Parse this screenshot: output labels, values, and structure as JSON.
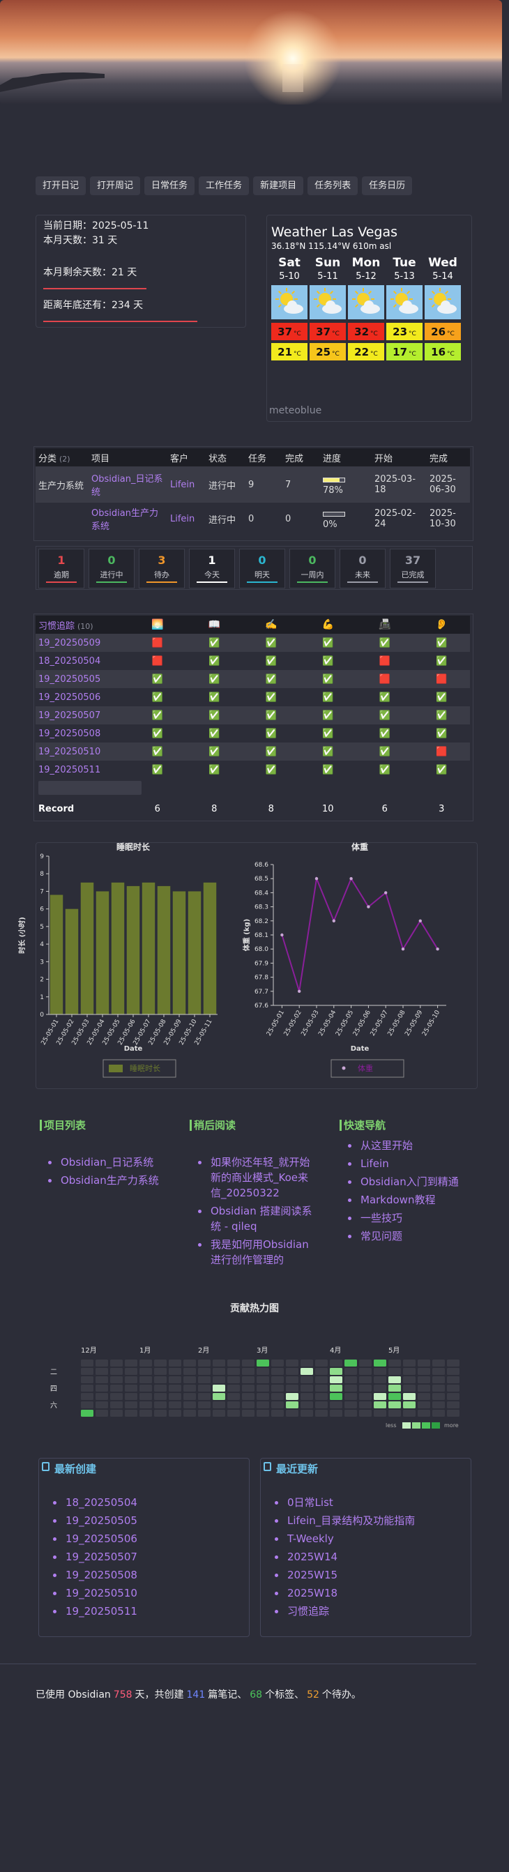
{
  "buttons": [
    "打开日记",
    "打开周记",
    "日常任务",
    "工作任务",
    "新建项目",
    "任务列表",
    "任务日历"
  ],
  "info": {
    "current_date": "当前日期：2025-05-11",
    "month_days": "本月天数：31 天",
    "month_remaining": "本月剩余天数：21 天",
    "year_remaining": "距离年底还有：234 天"
  },
  "weather": {
    "title": "Weather Las Vegas",
    "location": "36.18°N 115.14°W 610m asl",
    "unit": "°C",
    "source": "meteoblue",
    "days": [
      {
        "day": "Sat",
        "date": "5-10",
        "high": 37,
        "low": 21
      },
      {
        "day": "Sun",
        "date": "5-11",
        "high": 37,
        "low": 25
      },
      {
        "day": "Mon",
        "date": "5-12",
        "high": 32,
        "low": 22
      },
      {
        "day": "Tue",
        "date": "5-13",
        "high": 23,
        "low": 17
      },
      {
        "day": "Wed",
        "date": "5-14",
        "high": 26,
        "low": 16
      }
    ]
  },
  "projects": {
    "headers": [
      "分类",
      "项目",
      "客户",
      "状态",
      "任务",
      "完成",
      "进度",
      "开始",
      "完成"
    ],
    "count": "(2)",
    "rows": [
      {
        "category": "生产力系统",
        "project": "Obsidian_日记系统",
        "client": "Lifein",
        "status": "进行中",
        "tasks": 9,
        "done": 7,
        "progress": "78%",
        "start": "2025-03-18",
        "end": "2025-06-30"
      },
      {
        "category": null,
        "project": "Obsidian生产力系统",
        "client": "Lifein",
        "status": "进行中",
        "tasks": 0,
        "done": 0,
        "progress": "0%",
        "start": "2025-02-24",
        "end": "2025-10-30"
      }
    ]
  },
  "task_counts": [
    {
      "count": 1,
      "label": "逾期",
      "color": "#e5484d"
    },
    {
      "count": 0,
      "label": "进行中",
      "color": "#4cb860"
    },
    {
      "count": 3,
      "label": "待办",
      "color": "#f0962a"
    },
    {
      "count": 1,
      "label": "今天",
      "color": "#ffffff"
    },
    {
      "count": 0,
      "label": "明天",
      "color": "#2bb6d0"
    },
    {
      "count": 0,
      "label": "一周内",
      "color": "#4cb860"
    },
    {
      "count": 0,
      "label": "未来",
      "color": "#9a9ca8"
    },
    {
      "count": 37,
      "label": "已完成",
      "color": "#9a9ca8"
    }
  ],
  "habits": {
    "title": "习惯追踪",
    "count": "(10)",
    "icons": [
      "🌅",
      "📖",
      "✍️",
      "💪",
      "📠",
      "👂"
    ],
    "rows": [
      {
        "name": "19_20250509",
        "marks": [
          "🟥",
          "✅",
          "✅",
          "✅",
          "✅",
          "✅"
        ]
      },
      {
        "name": "18_20250504",
        "marks": [
          "🟥",
          "✅",
          "✅",
          "✅",
          "🟥",
          "✅"
        ]
      },
      {
        "name": "19_20250505",
        "marks": [
          "✅",
          "✅",
          "✅",
          "✅",
          "🟥",
          "🟥"
        ]
      },
      {
        "name": "19_20250506",
        "marks": [
          "✅",
          "✅",
          "✅",
          "✅",
          "✅",
          "✅"
        ]
      },
      {
        "name": "19_20250507",
        "marks": [
          "✅",
          "✅",
          "✅",
          "✅",
          "✅",
          "✅"
        ]
      },
      {
        "name": "19_20250508",
        "marks": [
          "✅",
          "✅",
          "✅",
          "✅",
          "✅",
          "✅"
        ]
      },
      {
        "name": "19_20250510",
        "marks": [
          "✅",
          "✅",
          "✅",
          "✅",
          "✅",
          "🟥"
        ]
      },
      {
        "name": "19_20250511",
        "marks": [
          "✅",
          "✅",
          "✅",
          "✅",
          "✅",
          "✅"
        ]
      }
    ],
    "record_label": "Record",
    "record": [
      6,
      8,
      8,
      10,
      6,
      3
    ]
  },
  "chart_data": [
    {
      "type": "bar",
      "title": "睡眠时长",
      "x_label": "Date",
      "y_label": "时长 (小时)",
      "categories": [
        "25-05-01",
        "25-05-02",
        "25-05-03",
        "25-05-04",
        "25-05-05",
        "25-05-06",
        "25-05-07",
        "25-05-08",
        "25-05-09",
        "25-05-10",
        "25-05-11"
      ],
      "series": [
        {
          "name": "睡眠时长",
          "color": "#6b7a2e",
          "values": [
            6.8,
            6.0,
            7.5,
            7.0,
            7.5,
            7.3,
            7.5,
            7.3,
            7.0,
            7.0,
            7.5
          ]
        }
      ],
      "ylim": [
        0,
        9
      ],
      "yticks": [
        0,
        1,
        2,
        3,
        4,
        5,
        6,
        7,
        8,
        9
      ],
      "grid": false
    },
    {
      "type": "line",
      "title": "体重",
      "x_label": "Date",
      "y_label": "体重 (kg)",
      "categories": [
        "25-05-01",
        "25-05-02",
        "25-05-03",
        "25-05-04",
        "25-05-05",
        "25-05-06",
        "25-05-07",
        "25-05-08",
        "25-05-09",
        "25-05-10"
      ],
      "series": [
        {
          "name": "体重",
          "color": "#8a1f9a",
          "values": [
            68.1,
            67.7,
            68.5,
            68.2,
            68.5,
            68.3,
            68.4,
            68.0,
            68.2,
            68.0
          ]
        }
      ],
      "ylim": [
        67.6,
        68.6
      ],
      "yticks": [
        67.6,
        67.7,
        67.8,
        67.9,
        {
          "value": 68,
          "label": "68.0"
        },
        68.1,
        68.2,
        68.3,
        68.4,
        68.5,
        68.6
      ],
      "grid": false
    }
  ],
  "lists": [
    {
      "title": "项目列表",
      "items": [
        "Obsidian_日记系统",
        "Obsidian生产力系统"
      ]
    },
    {
      "title": "稍后阅读",
      "items": [
        "如果你还年轻_就开始新的商业模式_Koe来信_20250322",
        "Obsidian 搭建阅读系统 - qileq",
        "我是如何用Obsidian进行创作管理的"
      ]
    },
    {
      "title": "快速导航",
      "items": [
        "从这里开始",
        "Lifein",
        "Obsidian入门到精通",
        "Markdown教程",
        "一些技巧",
        "常见问题"
      ]
    }
  ],
  "heatmap": {
    "title": "贡献热力图",
    "months": [
      {
        "label": "12月",
        "week": 0
      },
      {
        "label": "1月",
        "week": 4
      },
      {
        "label": "2月",
        "week": 8
      },
      {
        "label": "3月",
        "week": 12
      },
      {
        "label": "4月",
        "week": 17
      },
      {
        "label": "5月",
        "week": 21
      }
    ],
    "weekdays": [
      {
        "label": "二",
        "row": 1
      },
      {
        "label": "四",
        "row": 3
      },
      {
        "label": "六",
        "row": 5
      }
    ],
    "colors": [
      "#3b3c46",
      "#c6f0c2",
      "#8fdc8b",
      "#4cc35a",
      "#2ea043"
    ],
    "less": "less",
    "more": "more",
    "levels": [
      [
        0,
        0,
        0,
        0,
        0,
        0,
        0,
        0,
        0,
        0,
        0,
        0,
        3,
        0,
        0,
        0,
        0,
        0,
        3,
        0,
        3,
        0,
        0,
        0,
        0,
        0
      ],
      [
        0,
        0,
        0,
        0,
        0,
        0,
        0,
        0,
        0,
        0,
        0,
        0,
        0,
        0,
        0,
        1,
        0,
        2,
        0,
        0,
        0,
        0,
        0,
        0,
        0,
        0
      ],
      [
        0,
        0,
        0,
        0,
        0,
        0,
        0,
        0,
        0,
        0,
        0,
        0,
        0,
        0,
        0,
        0,
        0,
        1,
        0,
        0,
        0,
        1,
        0,
        0,
        0,
        0
      ],
      [
        0,
        0,
        0,
        0,
        0,
        0,
        0,
        0,
        0,
        1,
        0,
        0,
        0,
        0,
        0,
        0,
        0,
        2,
        0,
        0,
        0,
        2,
        0,
        0,
        0,
        0
      ],
      [
        0,
        0,
        0,
        0,
        0,
        0,
        0,
        0,
        0,
        2,
        0,
        0,
        0,
        0,
        1,
        0,
        0,
        3,
        0,
        0,
        1,
        3,
        1,
        0,
        0,
        0
      ],
      [
        0,
        0,
        0,
        0,
        0,
        0,
        0,
        0,
        0,
        0,
        0,
        0,
        0,
        0,
        2,
        0,
        0,
        0,
        0,
        0,
        2,
        2,
        2,
        0,
        0,
        0
      ],
      [
        3,
        0,
        0,
        0,
        0,
        0,
        0,
        0,
        0,
        0,
        0,
        0,
        0,
        0,
        0,
        0,
        0,
        0,
        0,
        0,
        0,
        0,
        0,
        0,
        0,
        0
      ]
    ]
  },
  "recent": [
    {
      "title": "最新创建",
      "items": [
        "18_20250504",
        "19_20250505",
        "19_20250506",
        "19_20250507",
        "19_20250508",
        "19_20250510",
        "19_20250511"
      ]
    },
    {
      "title": "最近更新",
      "items": [
        "0日常List",
        "Lifein_目录结构及功能指南",
        "T-Weekly",
        "2025W14",
        "2025W15",
        "2025W18",
        "习惯追踪"
      ]
    }
  ],
  "footer": {
    "segments": [
      "已使用 Obsidian",
      "天，共创建",
      "篇笔记、",
      "个标签、",
      "个待办。"
    ],
    "numbers": [
      758,
      141,
      68,
      52
    ],
    "number_colors": [
      "#ff5c7a",
      "#6f86ff",
      "#4cc35a",
      "#f0a030"
    ]
  }
}
